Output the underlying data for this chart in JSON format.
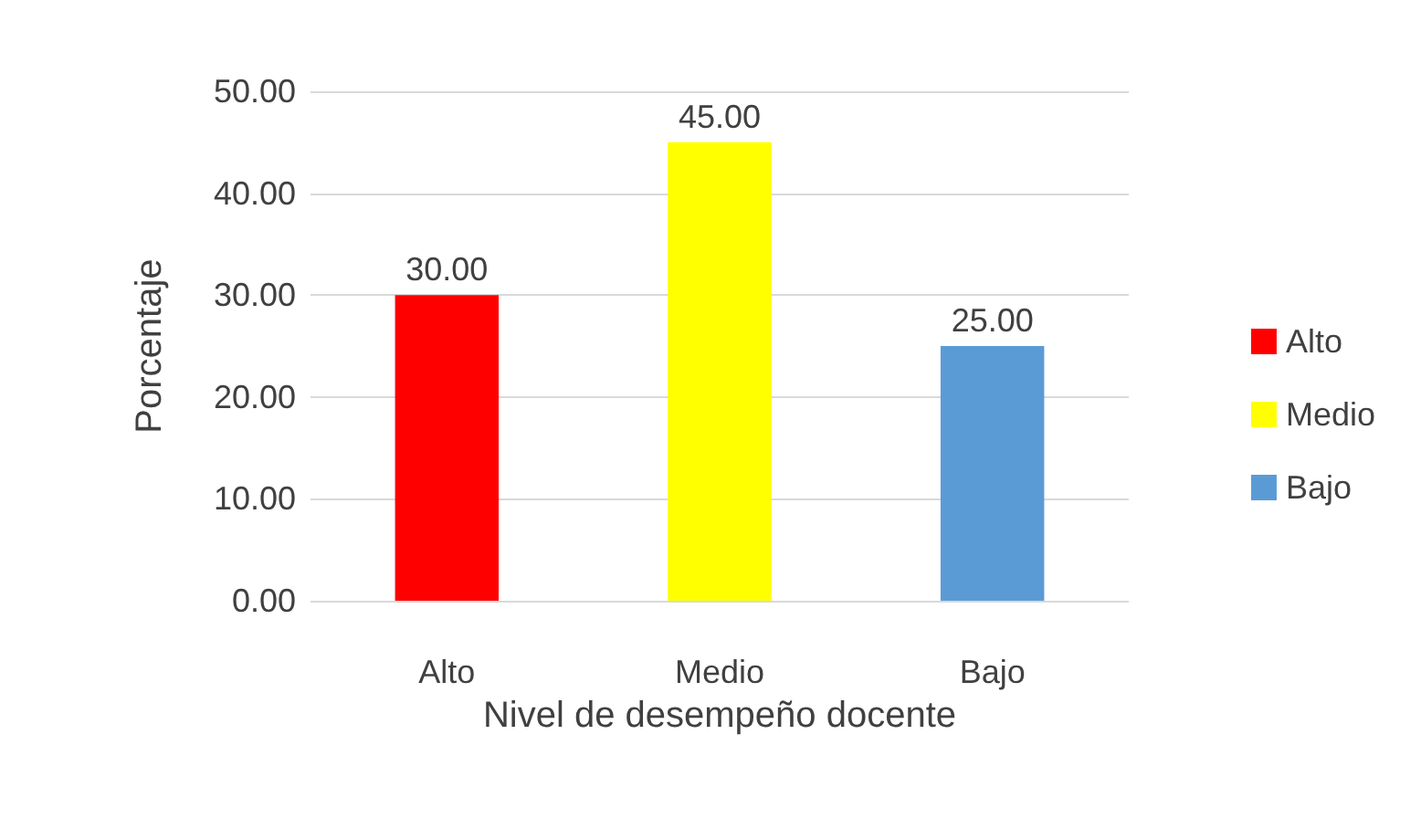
{
  "chart_data": {
    "type": "bar",
    "xlabel": "Nivel de desempeño docente",
    "ylabel": "Porcentaje",
    "categories": [
      "Alto",
      "Medio",
      "Bajo"
    ],
    "series": [
      {
        "name": "Alto",
        "color": "#ff0000",
        "values": [
          30,
          null,
          null
        ],
        "value_labels": [
          "30.00",
          null,
          null
        ]
      },
      {
        "name": "Medio",
        "color": "#ffff00",
        "values": [
          null,
          45,
          null
        ],
        "value_labels": [
          null,
          "45.00",
          null
        ]
      },
      {
        "name": "Bajo",
        "color": "#5b9bd5",
        "values": [
          null,
          null,
          25
        ],
        "value_labels": [
          null,
          null,
          "25.00"
        ]
      }
    ],
    "ylim": [
      0,
      50
    ],
    "yticks": [
      {
        "value": 0,
        "label": "0.00"
      },
      {
        "value": 10,
        "label": "10.00"
      },
      {
        "value": 20,
        "label": "20.00"
      },
      {
        "value": 30,
        "label": "30.00"
      },
      {
        "value": 40,
        "label": "40.00"
      },
      {
        "value": 50,
        "label": "50.00"
      }
    ],
    "grid": "y",
    "legend": "right"
  }
}
